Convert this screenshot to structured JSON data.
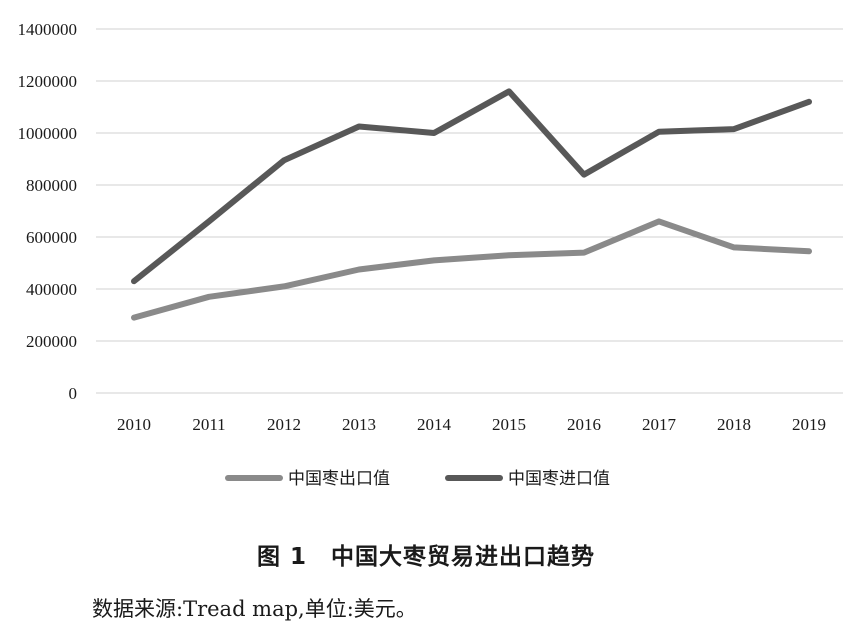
{
  "chart_data": {
    "type": "line",
    "x": [
      "2010",
      "2011",
      "2012",
      "2013",
      "2014",
      "2015",
      "2016",
      "2017",
      "2018",
      "2019"
    ],
    "ylim": [
      0,
      1400000
    ],
    "yticks": [
      "0",
      "200000",
      "400000",
      "600000",
      "800000",
      "1000000",
      "1200000",
      "1400000"
    ],
    "grid": true,
    "legend_position": "bottom",
    "series": [
      {
        "name": "中国枣出口值",
        "color": "#8a8a8a",
        "values": [
          290000,
          370000,
          410000,
          475000,
          510000,
          530000,
          540000,
          660000,
          560000,
          545000
        ]
      },
      {
        "name": "中国枣进口值",
        "color": "#585858",
        "values": [
          430000,
          660000,
          895000,
          1025000,
          1000000,
          1160000,
          840000,
          1005000,
          1015000,
          1120000
        ]
      }
    ]
  },
  "caption": "图 1　中国大枣贸易进出口趋势",
  "source_note": "数据来源:Tread map,单位:美元。"
}
